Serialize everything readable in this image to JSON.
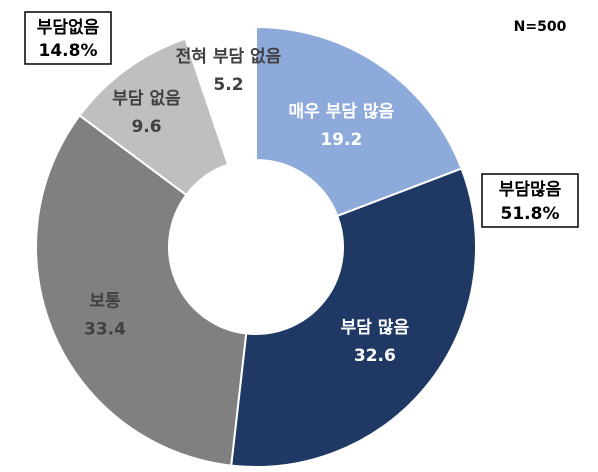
{
  "chart_data": {
    "type": "pie",
    "style": "donut-exploded",
    "n_label": "N=500",
    "slices": [
      {
        "label": "매우 부담 많음",
        "value": 19.2,
        "value_text": "19.2",
        "color": "#8eaadb",
        "text_color": "#ffffff"
      },
      {
        "label": "부담 많음",
        "value": 32.6,
        "value_text": "32.6",
        "color": "#203864",
        "text_color": "#ffffff"
      },
      {
        "label": "보통",
        "value": 33.4,
        "value_text": "33.4",
        "color": "#808080",
        "text_color": "#404040"
      },
      {
        "label": "부담 없음",
        "value": 9.6,
        "value_text": "9.6",
        "color": "#bfbfbf",
        "text_color": "#404040"
      },
      {
        "label": "전혀 부담 없음",
        "value": 5.2,
        "value_text": "5.2",
        "color": "#ffffff",
        "text_color": "#404040"
      }
    ],
    "group_boxes": [
      {
        "label": "부담없음",
        "value_text": "14.8%"
      },
      {
        "label": "부담많음",
        "value_text": "51.8%"
      }
    ]
  }
}
